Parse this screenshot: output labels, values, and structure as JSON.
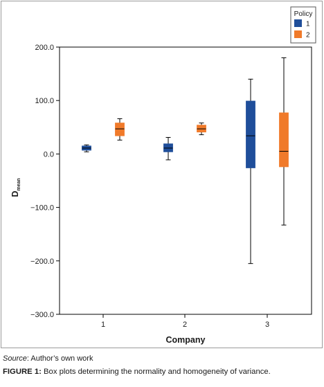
{
  "chart_data": {
    "type": "boxplot",
    "title": "",
    "xlabel": "Company",
    "ylabel": {
      "main": "D",
      "subscript": "mean"
    },
    "categories": [
      "1",
      "2",
      "3"
    ],
    "ylim": [
      -300,
      200
    ],
    "yticks": [
      -300,
      -200,
      -100,
      0,
      100,
      200
    ],
    "ytick_labels": [
      "−300.0",
      "−200.0",
      "−100.0",
      "0.0",
      "100.0",
      "200.0"
    ],
    "legend": {
      "title": "Policy",
      "placement": "top-right"
    },
    "series": [
      {
        "name": "1",
        "color": "#1f4e9a",
        "boxes": [
          {
            "category": "1",
            "min": 4,
            "q1": 7,
            "median": 11,
            "q3": 15,
            "max": 17
          },
          {
            "category": "2",
            "min": -11,
            "q1": 4,
            "median": 11,
            "q3": 19,
            "max": 31
          },
          {
            "category": "3",
            "min": -205,
            "q1": -26,
            "median": 34,
            "q3": 99,
            "max": 140
          }
        ]
      },
      {
        "name": "2",
        "color": "#f07a2a",
        "boxes": [
          {
            "category": "1",
            "min": 26,
            "q1": 34,
            "median": 47,
            "q3": 58,
            "max": 66
          },
          {
            "category": "2",
            "min": 36,
            "q1": 41,
            "median": 47,
            "q3": 54,
            "max": 58
          },
          {
            "category": "3",
            "min": -133,
            "q1": -24,
            "median": 5,
            "q3": 77,
            "max": 180
          }
        ]
      }
    ]
  },
  "source": {
    "label": "Source",
    "text": ": Author’s own work"
  },
  "caption": {
    "label": "FIGURE 1:",
    "text": " Box plots determining the normality and homogeneity of variance."
  }
}
